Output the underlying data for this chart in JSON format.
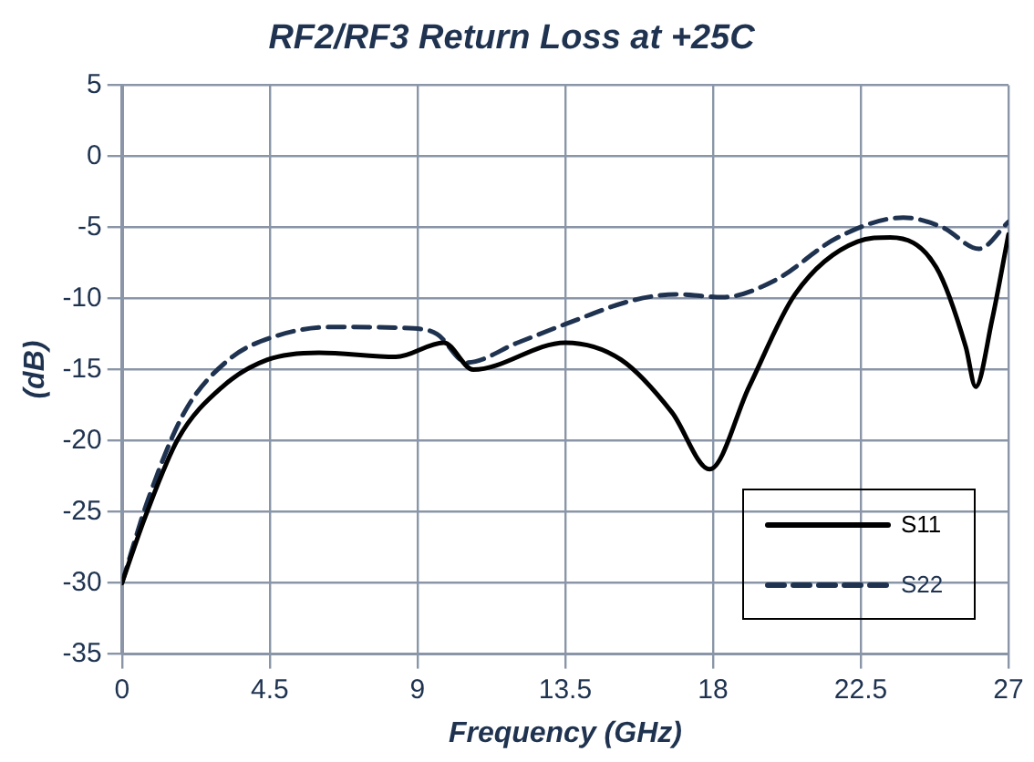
{
  "chart_data": {
    "type": "line",
    "title": "RF2/RF3 Return Loss at +25C",
    "xlabel": "Frequency (GHz)",
    "ylabel": "(dB)",
    "xlim": [
      0,
      27
    ],
    "xticks": [
      0,
      4.5,
      9,
      13.5,
      18,
      22.5,
      27
    ],
    "ylim": [
      -35,
      5
    ],
    "yticks": [
      -35,
      -30,
      -25,
      -20,
      -15,
      -10,
      -5,
      0,
      5
    ],
    "grid": true,
    "legend": "bottom right",
    "marker": "none",
    "series": [
      {
        "name": "S11",
        "color": "#000000",
        "line_style": "solid",
        "x": [
          0,
          0.7,
          1.7,
          3.06,
          4.43,
          6.0,
          8.34,
          9.8,
          10.7,
          13.5,
          15.2,
          16.75,
          17.9,
          19.1,
          20.5,
          22.4,
          23.4,
          24.8,
          25.7,
          26.0,
          26.5,
          27
        ],
        "values": [
          -30,
          -25.4,
          -19.9,
          -16.2,
          -14.3,
          -13.8,
          -14.1,
          -13.1,
          -15.0,
          -13.1,
          -14.3,
          -18.0,
          -22.0,
          -16.2,
          -9.7,
          -6.0,
          -5.7,
          -7.8,
          -13.4,
          -16.2,
          -11.5,
          -5.5
        ]
      },
      {
        "name": "S22",
        "color": "#1f3350",
        "line_style": "dashed",
        "x": [
          0,
          0.8,
          1.9,
          3.25,
          4.6,
          6.4,
          8.9,
          9.6,
          10.5,
          12.05,
          13.5,
          15.6,
          16.9,
          18.3,
          19.9,
          21.8,
          23.8,
          25.0,
          26.1,
          27
        ],
        "values": [
          -30,
          -24.1,
          -18.0,
          -14.3,
          -12.7,
          -12.0,
          -12.1,
          -12.5,
          -14.5,
          -13.1,
          -11.8,
          -10.1,
          -9.7,
          -9.9,
          -8.7,
          -5.7,
          -4.3,
          -5.0,
          -6.5,
          -4.6
        ]
      }
    ]
  }
}
